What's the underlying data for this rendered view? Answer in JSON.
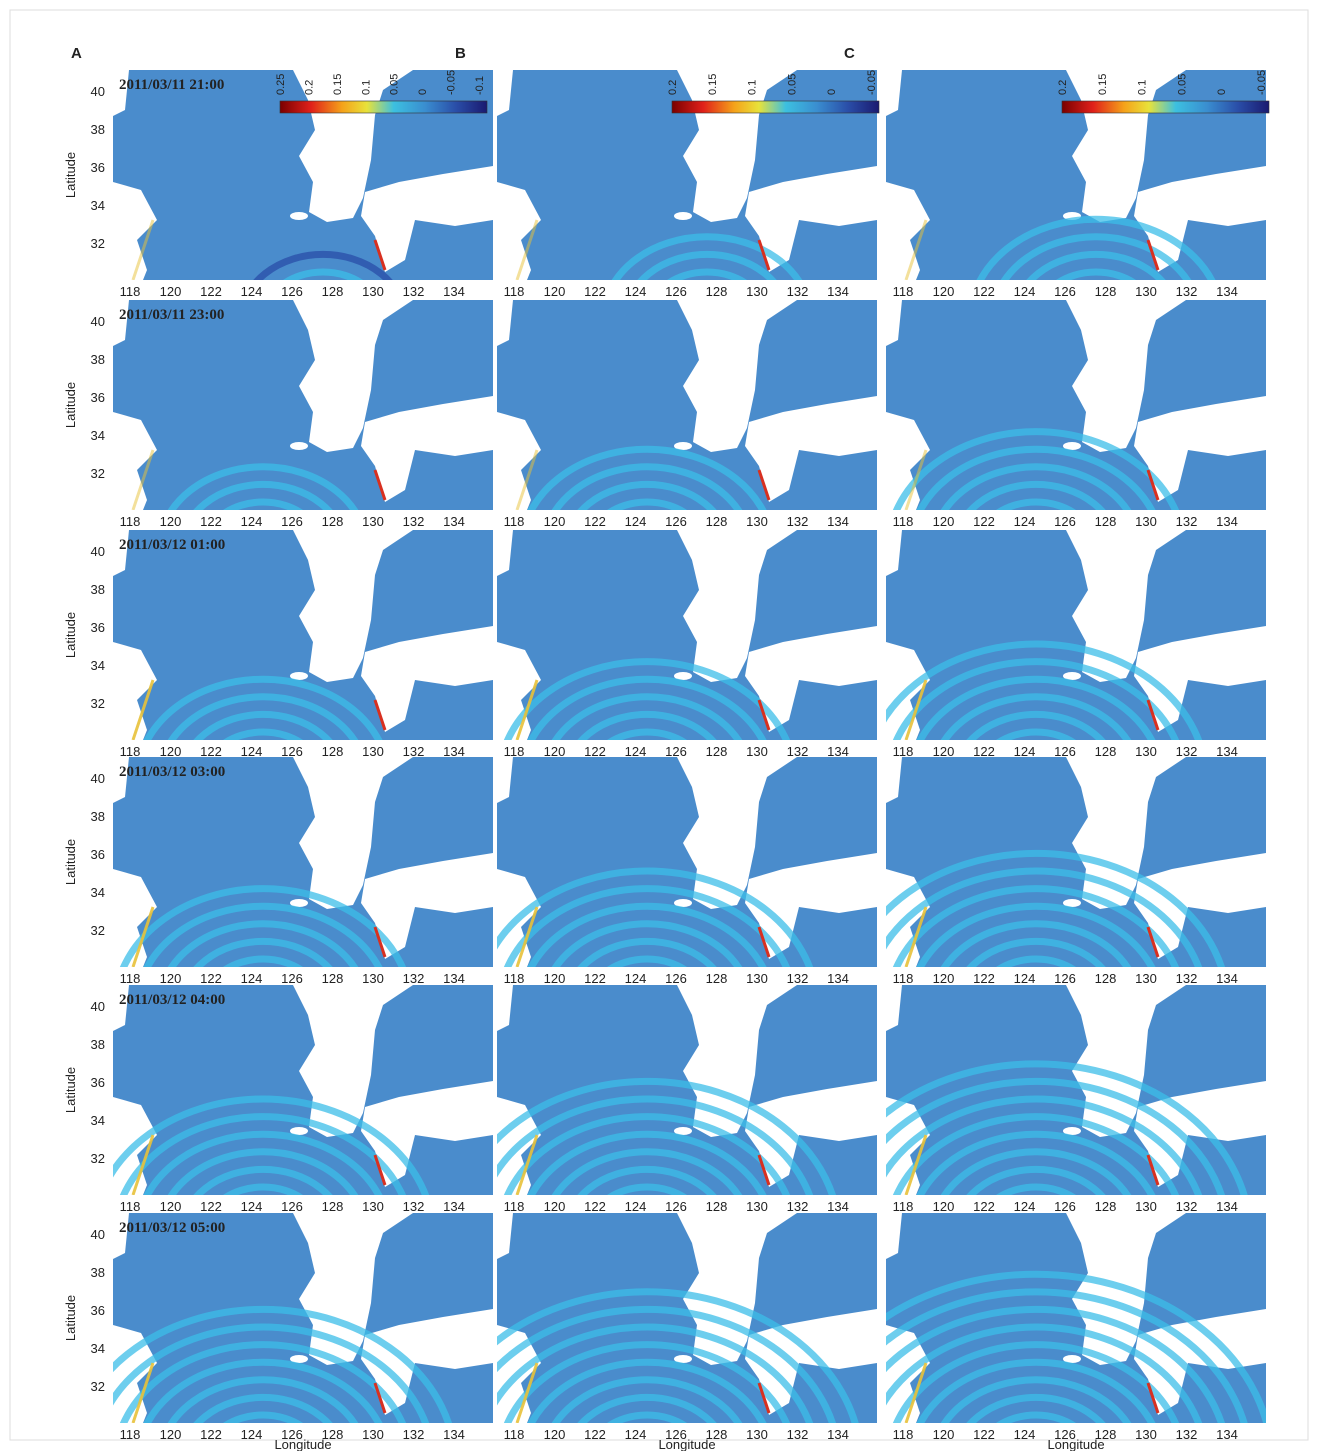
{
  "panels": [
    "A",
    "B",
    "C"
  ],
  "timestamps": [
    "2011/03/11 21:00",
    "2011/03/11 23:00",
    "2011/03/12 01:00",
    "2011/03/12 03:00",
    "2011/03/12 04:00",
    "2011/03/12 05:00"
  ],
  "colorbars": [
    {
      "ticks": [
        0.25,
        0.2,
        0.15,
        0.1,
        0.05,
        0,
        -0.05,
        -0.1
      ]
    },
    {
      "ticks": [
        0.2,
        0.15,
        0.1,
        0.05,
        0,
        -0.05
      ]
    },
    {
      "ticks": [
        0.2,
        0.15,
        0.1,
        0.05,
        0,
        -0.05
      ]
    }
  ],
  "lat_ticks": [
    40,
    38,
    36,
    34,
    32
  ],
  "lon_ticks": [
    118,
    120,
    122,
    124,
    126,
    128,
    130,
    132,
    134
  ],
  "y_label": "Latitude",
  "x_label": "Longitude"
}
